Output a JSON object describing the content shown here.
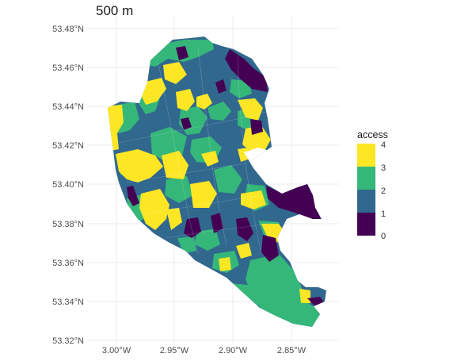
{
  "title": "500 m",
  "colors": {
    "access_0": "#440154",
    "access_1": "#31688e",
    "access_2": "#35b779",
    "access_3": "#fde725",
    "grid": "#ebebeb"
  },
  "axes": {
    "y_ticks": [
      "53.48°N",
      "53.46°N",
      "53.44°N",
      "53.42°N",
      "53.40°N",
      "53.38°N",
      "53.36°N",
      "53.34°N",
      "53.32°N"
    ],
    "x_ticks": [
      "3.00°W",
      "2.95°W",
      "2.90°W",
      "2.85°W"
    ]
  },
  "legend": {
    "title": "access",
    "labels": [
      "4",
      "3",
      "2",
      "1",
      "0"
    ]
  }
}
